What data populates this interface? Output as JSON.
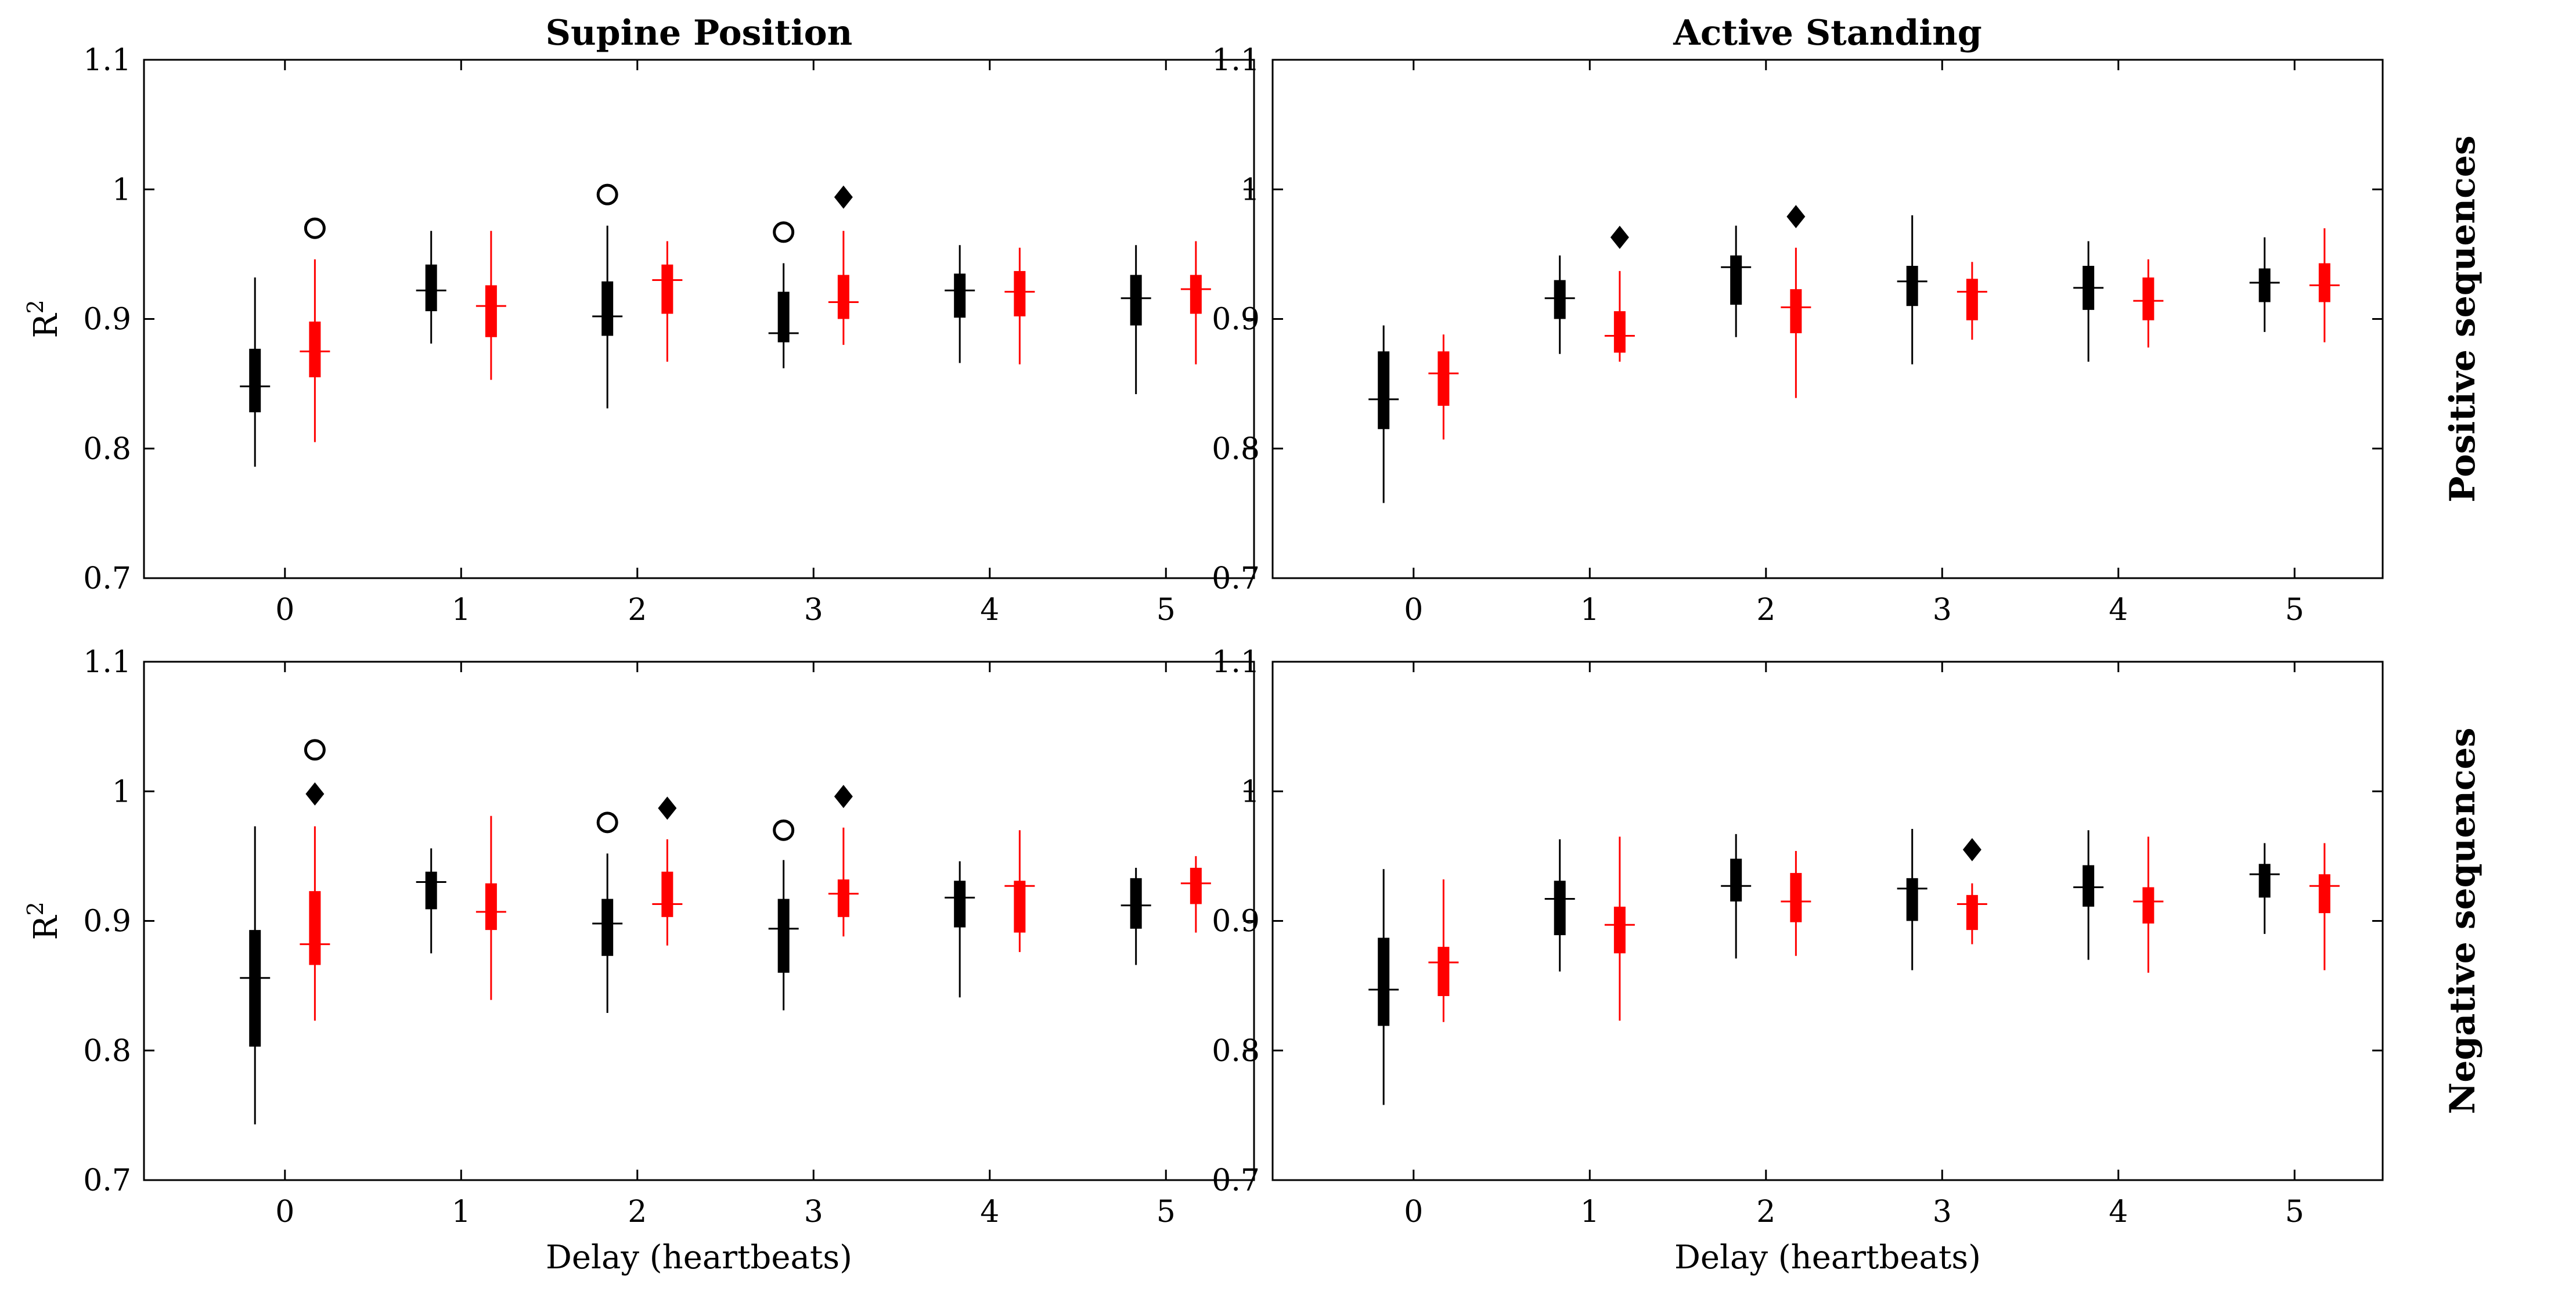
{
  "figure": {
    "column_titles": [
      "Supine Position",
      "Active Standing"
    ],
    "row_titles": [
      "Positive sequences",
      "Negative sequences"
    ],
    "colors": {
      "black": "#000000",
      "red": "#ff0000"
    }
  },
  "chart_data": [
    {
      "type": "boxplot",
      "panel": "supine-positive",
      "title": "Supine Position",
      "xlabel": "",
      "ylabel": "R",
      "ylabel_superscript": "2",
      "row_label": "",
      "xlim": [
        -0.8,
        5.5
      ],
      "ylim": [
        0.7,
        1.1
      ],
      "xticks": [
        0,
        1,
        2,
        3,
        4,
        5
      ],
      "yticks": [
        0.7,
        0.8,
        0.9,
        1.0,
        1.1
      ],
      "ytick_labels": [
        "0.7",
        "0.8",
        "0.9",
        "1",
        "1.1"
      ],
      "series": [
        {
          "name": "black",
          "color": "#000000",
          "offset": -0.17,
          "boxes": [
            {
              "x": 0,
              "min": 0.786,
              "q1": 0.828,
              "median": 0.848,
              "q3": 0.877,
              "max": 0.932
            },
            {
              "x": 1,
              "min": 0.881,
              "q1": 0.906,
              "median": 0.922,
              "q3": 0.942,
              "max": 0.968
            },
            {
              "x": 2,
              "min": 0.831,
              "q1": 0.887,
              "median": 0.902,
              "q3": 0.929,
              "max": 0.972
            },
            {
              "x": 3,
              "min": 0.862,
              "q1": 0.882,
              "median": 0.889,
              "q3": 0.921,
              "max": 0.943
            },
            {
              "x": 4,
              "min": 0.866,
              "q1": 0.901,
              "median": 0.922,
              "q3": 0.935,
              "max": 0.957
            },
            {
              "x": 5,
              "min": 0.842,
              "q1": 0.895,
              "median": 0.916,
              "q3": 0.934,
              "max": 0.957
            }
          ]
        },
        {
          "name": "red",
          "color": "#ff0000",
          "offset": 0.17,
          "boxes": [
            {
              "x": 0,
              "min": 0.805,
              "q1": 0.855,
              "median": 0.875,
              "q3": 0.898,
              "max": 0.946
            },
            {
              "x": 1,
              "min": 0.853,
              "q1": 0.886,
              "median": 0.91,
              "q3": 0.926,
              "max": 0.968
            },
            {
              "x": 2,
              "min": 0.867,
              "q1": 0.904,
              "median": 0.93,
              "q3": 0.942,
              "max": 0.96
            },
            {
              "x": 3,
              "min": 0.88,
              "q1": 0.9,
              "median": 0.913,
              "q3": 0.934,
              "max": 0.968
            },
            {
              "x": 4,
              "min": 0.865,
              "q1": 0.902,
              "median": 0.921,
              "q3": 0.937,
              "max": 0.955
            },
            {
              "x": 5,
              "min": 0.865,
              "q1": 0.904,
              "median": 0.923,
              "q3": 0.934,
              "max": 0.96
            }
          ]
        }
      ],
      "markers": [
        {
          "x": 0.17,
          "y": 0.97,
          "shape": "circle"
        },
        {
          "x": 1.83,
          "y": 0.996,
          "shape": "circle"
        },
        {
          "x": 2.83,
          "y": 0.967,
          "shape": "circle"
        },
        {
          "x": 3.17,
          "y": 0.994,
          "shape": "diamond"
        }
      ]
    },
    {
      "type": "boxplot",
      "panel": "standing-positive",
      "title": "Active Standing",
      "xlabel": "",
      "ylabel": "",
      "ylabel_superscript": "",
      "row_label": "Positive sequences",
      "xlim": [
        -0.8,
        5.5
      ],
      "ylim": [
        0.7,
        1.1
      ],
      "xticks": [
        0,
        1,
        2,
        3,
        4,
        5
      ],
      "yticks": [
        0.7,
        0.8,
        0.9,
        1.0,
        1.1
      ],
      "ytick_labels": [
        "0.7",
        "0.8",
        "0.9",
        "1",
        "1.1"
      ],
      "series": [
        {
          "name": "black",
          "color": "#000000",
          "offset": -0.17,
          "boxes": [
            {
              "x": 0,
              "min": 0.758,
              "q1": 0.815,
              "median": 0.838,
              "q3": 0.875,
              "max": 0.895
            },
            {
              "x": 1,
              "min": 0.873,
              "q1": 0.9,
              "median": 0.916,
              "q3": 0.93,
              "max": 0.949
            },
            {
              "x": 2,
              "min": 0.886,
              "q1": 0.911,
              "median": 0.94,
              "q3": 0.949,
              "max": 0.972
            },
            {
              "x": 3,
              "min": 0.865,
              "q1": 0.91,
              "median": 0.929,
              "q3": 0.941,
              "max": 0.98
            },
            {
              "x": 4,
              "min": 0.867,
              "q1": 0.907,
              "median": 0.924,
              "q3": 0.941,
              "max": 0.96
            },
            {
              "x": 5,
              "min": 0.89,
              "q1": 0.913,
              "median": 0.928,
              "q3": 0.939,
              "max": 0.963
            }
          ]
        },
        {
          "name": "red",
          "color": "#ff0000",
          "offset": 0.17,
          "boxes": [
            {
              "x": 0,
              "min": 0.807,
              "q1": 0.833,
              "median": 0.858,
              "q3": 0.875,
              "max": 0.888
            },
            {
              "x": 1,
              "min": 0.867,
              "q1": 0.874,
              "median": 0.887,
              "q3": 0.906,
              "max": 0.937
            },
            {
              "x": 2,
              "min": 0.839,
              "q1": 0.889,
              "median": 0.909,
              "q3": 0.923,
              "max": 0.955
            },
            {
              "x": 3,
              "min": 0.884,
              "q1": 0.899,
              "median": 0.921,
              "q3": 0.931,
              "max": 0.944
            },
            {
              "x": 4,
              "min": 0.878,
              "q1": 0.899,
              "median": 0.914,
              "q3": 0.932,
              "max": 0.946
            },
            {
              "x": 5,
              "min": 0.882,
              "q1": 0.913,
              "median": 0.926,
              "q3": 0.943,
              "max": 0.97
            }
          ]
        }
      ],
      "markers": [
        {
          "x": 1.17,
          "y": 0.963,
          "shape": "diamond"
        },
        {
          "x": 2.17,
          "y": 0.979,
          "shape": "diamond"
        }
      ]
    },
    {
      "type": "boxplot",
      "panel": "supine-negative",
      "title": "",
      "xlabel": "Delay (heartbeats)",
      "ylabel": "R",
      "ylabel_superscript": "2",
      "row_label": "",
      "xlim": [
        -0.8,
        5.5
      ],
      "ylim": [
        0.7,
        1.1
      ],
      "xticks": [
        0,
        1,
        2,
        3,
        4,
        5
      ],
      "yticks": [
        0.7,
        0.8,
        0.9,
        1.0,
        1.1
      ],
      "ytick_labels": [
        "0.7",
        "0.8",
        "0.9",
        "1",
        "1.1"
      ],
      "series": [
        {
          "name": "black",
          "color": "#000000",
          "offset": -0.17,
          "boxes": [
            {
              "x": 0,
              "min": 0.743,
              "q1": 0.803,
              "median": 0.856,
              "q3": 0.893,
              "max": 0.973
            },
            {
              "x": 1,
              "min": 0.875,
              "q1": 0.909,
              "median": 0.93,
              "q3": 0.938,
              "max": 0.956
            },
            {
              "x": 2,
              "min": 0.829,
              "q1": 0.873,
              "median": 0.898,
              "q3": 0.917,
              "max": 0.952
            },
            {
              "x": 3,
              "min": 0.831,
              "q1": 0.86,
              "median": 0.894,
              "q3": 0.917,
              "max": 0.947
            },
            {
              "x": 4,
              "min": 0.841,
              "q1": 0.895,
              "median": 0.918,
              "q3": 0.931,
              "max": 0.946
            },
            {
              "x": 5,
              "min": 0.866,
              "q1": 0.894,
              "median": 0.912,
              "q3": 0.933,
              "max": 0.941
            }
          ]
        },
        {
          "name": "red",
          "color": "#ff0000",
          "offset": 0.17,
          "boxes": [
            {
              "x": 0,
              "min": 0.823,
              "q1": 0.866,
              "median": 0.882,
              "q3": 0.923,
              "max": 0.973
            },
            {
              "x": 1,
              "min": 0.839,
              "q1": 0.893,
              "median": 0.907,
              "q3": 0.929,
              "max": 0.981
            },
            {
              "x": 2,
              "min": 0.881,
              "q1": 0.903,
              "median": 0.913,
              "q3": 0.938,
              "max": 0.963
            },
            {
              "x": 3,
              "min": 0.888,
              "q1": 0.903,
              "median": 0.921,
              "q3": 0.932,
              "max": 0.972
            },
            {
              "x": 4,
              "min": 0.876,
              "q1": 0.891,
              "median": 0.927,
              "q3": 0.931,
              "max": 0.97
            },
            {
              "x": 5,
              "min": 0.891,
              "q1": 0.913,
              "median": 0.929,
              "q3": 0.941,
              "max": 0.95
            }
          ]
        }
      ],
      "markers": [
        {
          "x": 0.17,
          "y": 1.032,
          "shape": "circle"
        },
        {
          "x": 0.17,
          "y": 0.998,
          "shape": "diamond"
        },
        {
          "x": 1.83,
          "y": 0.976,
          "shape": "circle"
        },
        {
          "x": 2.17,
          "y": 0.987,
          "shape": "diamond"
        },
        {
          "x": 2.83,
          "y": 0.97,
          "shape": "circle"
        },
        {
          "x": 3.17,
          "y": 0.996,
          "shape": "diamond"
        }
      ]
    },
    {
      "type": "boxplot",
      "panel": "standing-negative",
      "title": "",
      "xlabel": "Delay (heartbeats)",
      "ylabel": "",
      "ylabel_superscript": "",
      "row_label": "Negative sequences",
      "xlim": [
        -0.8,
        5.5
      ],
      "ylim": [
        0.7,
        1.1
      ],
      "xticks": [
        0,
        1,
        2,
        3,
        4,
        5
      ],
      "yticks": [
        0.7,
        0.8,
        0.9,
        1.0,
        1.1
      ],
      "ytick_labels": [
        "0.7",
        "0.8",
        "0.9",
        "1",
        "1.1"
      ],
      "series": [
        {
          "name": "black",
          "color": "#000000",
          "offset": -0.17,
          "boxes": [
            {
              "x": 0,
              "min": 0.758,
              "q1": 0.819,
              "median": 0.847,
              "q3": 0.887,
              "max": 0.94
            },
            {
              "x": 1,
              "min": 0.861,
              "q1": 0.889,
              "median": 0.917,
              "q3": 0.931,
              "max": 0.963
            },
            {
              "x": 2,
              "min": 0.871,
              "q1": 0.915,
              "median": 0.927,
              "q3": 0.948,
              "max": 0.967
            },
            {
              "x": 3,
              "min": 0.862,
              "q1": 0.9,
              "median": 0.925,
              "q3": 0.933,
              "max": 0.971
            },
            {
              "x": 4,
              "min": 0.87,
              "q1": 0.911,
              "median": 0.926,
              "q3": 0.943,
              "max": 0.97
            },
            {
              "x": 5,
              "min": 0.89,
              "q1": 0.918,
              "median": 0.936,
              "q3": 0.944,
              "max": 0.96
            }
          ]
        },
        {
          "name": "red",
          "color": "#ff0000",
          "offset": 0.17,
          "boxes": [
            {
              "x": 0,
              "min": 0.822,
              "q1": 0.842,
              "median": 0.868,
              "q3": 0.88,
              "max": 0.932
            },
            {
              "x": 1,
              "min": 0.823,
              "q1": 0.875,
              "median": 0.897,
              "q3": 0.911,
              "max": 0.965
            },
            {
              "x": 2,
              "min": 0.873,
              "q1": 0.899,
              "median": 0.915,
              "q3": 0.937,
              "max": 0.954
            },
            {
              "x": 3,
              "min": 0.882,
              "q1": 0.893,
              "median": 0.913,
              "q3": 0.92,
              "max": 0.929
            },
            {
              "x": 4,
              "min": 0.86,
              "q1": 0.898,
              "median": 0.915,
              "q3": 0.926,
              "max": 0.965
            },
            {
              "x": 5,
              "min": 0.862,
              "q1": 0.906,
              "median": 0.927,
              "q3": 0.936,
              "max": 0.96
            }
          ]
        }
      ],
      "markers": [
        {
          "x": 3.17,
          "y": 0.955,
          "shape": "diamond"
        }
      ]
    }
  ]
}
